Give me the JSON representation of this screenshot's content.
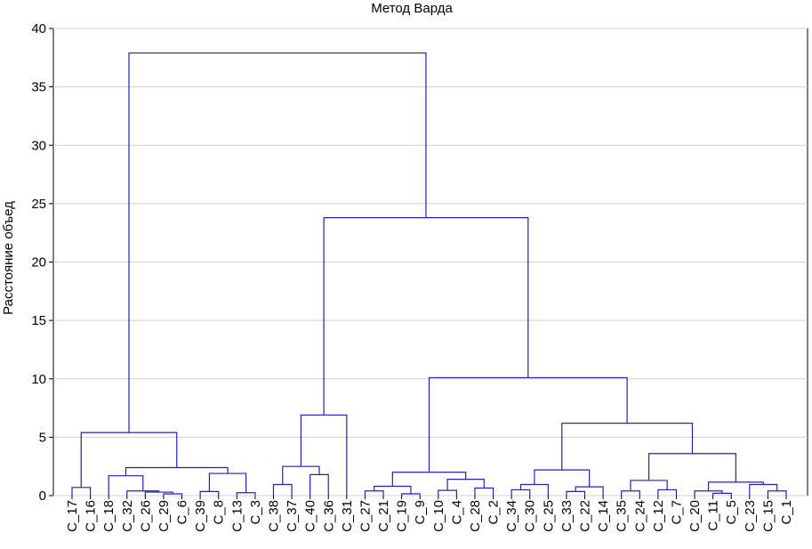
{
  "chart_data": {
    "type": "dendrogram",
    "title": "Метод Варда",
    "y_label": "Расстояние объед",
    "color": "#2222bb",
    "grid": true,
    "ylim": [
      0,
      40
    ],
    "yticks": [
      0,
      5,
      10,
      15,
      20,
      25,
      30,
      35,
      40
    ],
    "categories": [
      "C_17",
      "C_16",
      "C_18",
      "C_32",
      "C_26",
      "C_29",
      "C_6",
      "C_39",
      "C_8",
      "C_13",
      "C_3",
      "C_38",
      "C_37",
      "C_40",
      "C_36",
      "C_31",
      "C_27",
      "C_21",
      "C_19",
      "C_9",
      "C_10",
      "C_4",
      "C_28",
      "C_2",
      "C_34",
      "C_30",
      "C_25",
      "C_33",
      "C_22",
      "C_14",
      "C_35",
      "C_24",
      "C_12",
      "C_7",
      "C_20",
      "C_11",
      "C_5",
      "C_23",
      "C_15",
      "C_1"
    ],
    "merges": [
      [
        0,
        1,
        0.7
      ],
      [
        5,
        6,
        0.15
      ],
      [
        4,
        41,
        0.3
      ],
      [
        3,
        42,
        0.4
      ],
      [
        2,
        43,
        1.7
      ],
      [
        7,
        8,
        0.35
      ],
      [
        9,
        10,
        0.25
      ],
      [
        45,
        46,
        1.9
      ],
      [
        44,
        47,
        2.4
      ],
      [
        40,
        48,
        5.4
      ],
      [
        11,
        12,
        0.95
      ],
      [
        13,
        14,
        1.8
      ],
      [
        50,
        51,
        2.5
      ],
      [
        52,
        15,
        6.9
      ],
      [
        16,
        17,
        0.4
      ],
      [
        18,
        19,
        0.15
      ],
      [
        54,
        55,
        0.8
      ],
      [
        20,
        21,
        0.45
      ],
      [
        22,
        23,
        0.65
      ],
      [
        57,
        58,
        1.4
      ],
      [
        56,
        59,
        2.0
      ],
      [
        24,
        25,
        0.5
      ],
      [
        61,
        26,
        0.95
      ],
      [
        27,
        28,
        0.35
      ],
      [
        63,
        29,
        0.75
      ],
      [
        62,
        64,
        2.2
      ],
      [
        30,
        31,
        0.4
      ],
      [
        32,
        33,
        0.5
      ],
      [
        66,
        67,
        1.3
      ],
      [
        35,
        36,
        0.2
      ],
      [
        34,
        69,
        0.4
      ],
      [
        38,
        39,
        0.4
      ],
      [
        37,
        71,
        0.95
      ],
      [
        70,
        72,
        1.15
      ],
      [
        68,
        73,
        3.6
      ],
      [
        65,
        74,
        6.2
      ],
      [
        60,
        75,
        10.1
      ],
      [
        53,
        76,
        23.8
      ],
      [
        49,
        77,
        37.9
      ]
    ]
  }
}
